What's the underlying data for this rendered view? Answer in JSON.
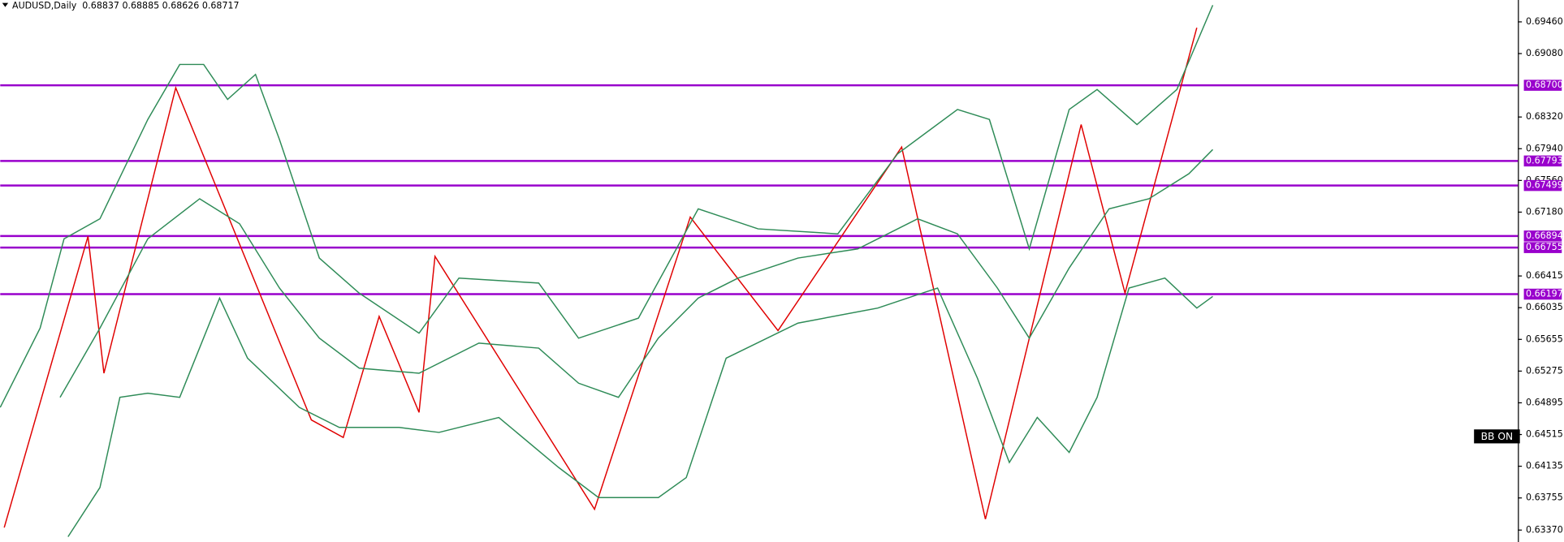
{
  "chart_data": {
    "type": "line",
    "title": "AUDUSD,Daily  0.68837 0.68885 0.68626 0.68717",
    "button": "BB ON",
    "xlim": [
      0,
      380
    ],
    "ylim": [
      0.63227,
      0.69722
    ],
    "yticks": [
      {
        "value": 0.6946,
        "label": "0.69460"
      },
      {
        "value": 0.6908,
        "label": "0.69080"
      },
      {
        "value": 0.6832,
        "label": "0.68320"
      },
      {
        "value": 0.6794,
        "label": "0.67940"
      },
      {
        "value": 0.6756,
        "label": "0.67560"
      },
      {
        "value": 0.6718,
        "label": "0.67180"
      },
      {
        "value": 0.66415,
        "label": "0.66415"
      },
      {
        "value": 0.66035,
        "label": "0.66035"
      },
      {
        "value": 0.65655,
        "label": "0.65655"
      },
      {
        "value": 0.65275,
        "label": "0.65275"
      },
      {
        "value": 0.64895,
        "label": "0.64895"
      },
      {
        "value": 0.64515,
        "label": "0.64515"
      },
      {
        "value": 0.64135,
        "label": "0.64135"
      },
      {
        "value": 0.63755,
        "label": "0.63755"
      },
      {
        "value": 0.6337,
        "label": "0.63370"
      }
    ],
    "levels": {
      "color": "#9900cc",
      "lines": [
        {
          "value": 0.687,
          "label": "0.68700"
        },
        {
          "value": 0.67793,
          "label": "0.67793"
        },
        {
          "value": 0.67499,
          "label": "0.67499"
        },
        {
          "value": 0.66894,
          "label": "0.66894"
        },
        {
          "value": 0.66755,
          "label": "0.66755"
        },
        {
          "value": 0.66197,
          "label": "0.66197"
        }
      ]
    },
    "series": [
      {
        "color": "#e00000",
        "x": [
          1,
          22,
          26,
          44,
          78,
          86,
          95,
          105,
          109,
          149,
          173,
          195,
          226,
          247,
          271,
          282,
          300
        ],
        "values": [
          0.634,
          0.6689,
          0.6525,
          0.6867,
          0.6469,
          0.6448,
          0.6593,
          0.6478,
          0.6665,
          0.6362,
          0.6712,
          0.6576,
          0.6796,
          0.635,
          0.6823,
          0.6621,
          0.6939
        ]
      },
      {
        "color": "#2e8b57",
        "x": [
          0,
          10,
          16,
          25,
          37,
          45,
          51,
          57,
          64,
          70,
          80,
          90,
          105,
          115,
          135,
          145,
          160,
          175,
          190,
          210,
          225,
          240,
          248,
          258,
          268,
          275,
          285,
          295,
          304
        ],
        "values": [
          0.6484,
          0.6579,
          0.6686,
          0.671,
          0.6829,
          0.6895,
          0.6895,
          0.6853,
          0.6883,
          0.6805,
          0.6663,
          0.6621,
          0.6573,
          0.6639,
          0.6633,
          0.6567,
          0.6591,
          0.6722,
          0.6698,
          0.6692,
          0.6788,
          0.6841,
          0.6829,
          0.6674,
          0.6841,
          0.6865,
          0.6823,
          0.6865,
          0.6966
        ]
      },
      {
        "color": "#2e8b57",
        "x": [
          15,
          25,
          37,
          50,
          60,
          70,
          80,
          90,
          105,
          120,
          135,
          145,
          155,
          165,
          175,
          185,
          200,
          215,
          230,
          240,
          250,
          258,
          268,
          278,
          288,
          298,
          304
        ],
        "values": [
          0.6496,
          0.6579,
          0.6686,
          0.6734,
          0.6704,
          0.6627,
          0.6567,
          0.6531,
          0.6525,
          0.6561,
          0.6555,
          0.6513,
          0.6496,
          0.6567,
          0.6615,
          0.6639,
          0.6663,
          0.6674,
          0.671,
          0.6692,
          0.6627,
          0.6567,
          0.6651,
          0.6722,
          0.6734,
          0.6764,
          0.6793
        ]
      },
      {
        "color": "#2e8b57",
        "x": [
          17,
          25,
          30,
          37,
          45,
          55,
          62,
          75,
          85,
          100,
          110,
          125,
          140,
          150,
          165,
          172,
          182,
          200,
          220,
          235,
          245,
          253,
          260,
          268,
          275,
          283,
          292,
          300,
          304
        ],
        "values": [
          0.6329,
          0.6388,
          0.6496,
          0.6501,
          0.6496,
          0.6615,
          0.6543,
          0.6484,
          0.646,
          0.646,
          0.6454,
          0.6472,
          0.6412,
          0.6376,
          0.6376,
          0.64,
          0.6543,
          0.6585,
          0.6603,
          0.6627,
          0.6519,
          0.6418,
          0.6472,
          0.643,
          0.6496,
          0.6627,
          0.6639,
          0.6603,
          0.6617
        ]
      }
    ]
  }
}
